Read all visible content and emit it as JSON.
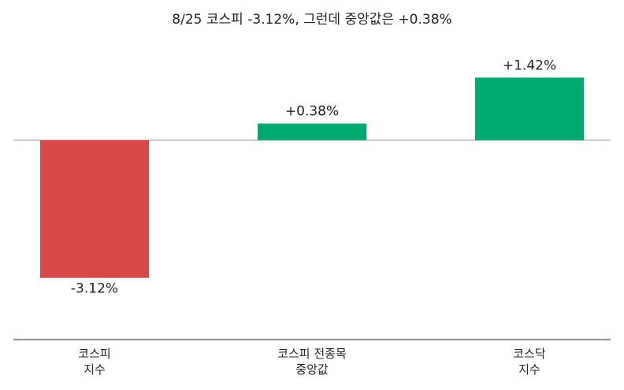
{
  "chart_data": {
    "type": "bar",
    "title": "8/25 코스피 -3.12%, 그런데 중앙값은 +0.38%",
    "categories": [
      "코스피\n지수",
      "코스피 전종목\n중앙값",
      "코스닥\n지수"
    ],
    "values": [
      -3.12,
      0.38,
      1.42
    ],
    "value_labels": [
      "-3.12%",
      "+0.38%",
      "+1.42%"
    ],
    "colors": [
      "#d84848",
      "#00a96e",
      "#00a96e"
    ],
    "ylim": [
      -4.5,
      2.5
    ]
  }
}
